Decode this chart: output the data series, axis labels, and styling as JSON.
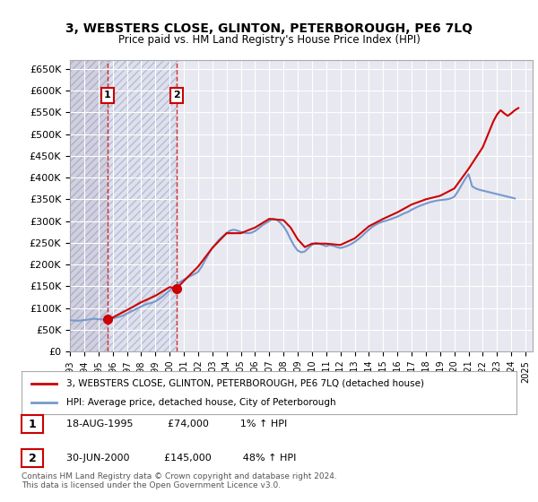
{
  "title": "3, WEBSTERS CLOSE, GLINTON, PETERBOROUGH, PE6 7LQ",
  "subtitle": "Price paid vs. HM Land Registry's House Price Index (HPI)",
  "ylabel_ticks": [
    0,
    50000,
    100000,
    150000,
    200000,
    250000,
    300000,
    350000,
    400000,
    450000,
    500000,
    550000,
    600000,
    650000
  ],
  "ylim": [
    0,
    670000
  ],
  "xlim_start": 1993.0,
  "xlim_end": 2025.5,
  "background_color": "#ffffff",
  "plot_bg_color": "#e8e8f0",
  "hatch_color": "#c8c8d8",
  "grid_color": "#ffffff",
  "red_line_color": "#cc0000",
  "blue_line_color": "#7799cc",
  "transaction_marker_color": "#cc0000",
  "transactions": [
    {
      "num": 1,
      "date": "18-AUG-1995",
      "price": 74000,
      "year": 1995.63,
      "pct": "1%",
      "dir": "↑"
    },
    {
      "num": 2,
      "date": "30-JUN-2000",
      "price": 145000,
      "year": 2000.5,
      "pct": "48%",
      "dir": "↑"
    }
  ],
  "legend_line1": "3, WEBSTERS CLOSE, GLINTON, PETERBOROUGH, PE6 7LQ (detached house)",
  "legend_line2": "HPI: Average price, detached house, City of Peterborough",
  "footer": "Contains HM Land Registry data © Crown copyright and database right 2024.\nThis data is licensed under the Open Government Licence v3.0.",
  "hpi_data_x": [
    1993.0,
    1993.25,
    1993.5,
    1993.75,
    1994.0,
    1994.25,
    1994.5,
    1994.75,
    1995.0,
    1995.25,
    1995.5,
    1995.75,
    1996.0,
    1996.25,
    1996.5,
    1996.75,
    1997.0,
    1997.25,
    1997.5,
    1997.75,
    1998.0,
    1998.25,
    1998.5,
    1998.75,
    1999.0,
    1999.25,
    1999.5,
    1999.75,
    2000.0,
    2000.25,
    2000.5,
    2000.75,
    2001.0,
    2001.25,
    2001.5,
    2001.75,
    2002.0,
    2002.25,
    2002.5,
    2002.75,
    2003.0,
    2003.25,
    2003.5,
    2003.75,
    2004.0,
    2004.25,
    2004.5,
    2004.75,
    2005.0,
    2005.25,
    2005.5,
    2005.75,
    2006.0,
    2006.25,
    2006.5,
    2006.75,
    2007.0,
    2007.25,
    2007.5,
    2007.75,
    2008.0,
    2008.25,
    2008.5,
    2008.75,
    2009.0,
    2009.25,
    2009.5,
    2009.75,
    2010.0,
    2010.25,
    2010.5,
    2010.75,
    2011.0,
    2011.25,
    2011.5,
    2011.75,
    2012.0,
    2012.25,
    2012.5,
    2012.75,
    2013.0,
    2013.25,
    2013.5,
    2013.75,
    2014.0,
    2014.25,
    2014.5,
    2014.75,
    2015.0,
    2015.25,
    2015.5,
    2015.75,
    2016.0,
    2016.25,
    2016.5,
    2016.75,
    2017.0,
    2017.25,
    2017.5,
    2017.75,
    2018.0,
    2018.25,
    2018.5,
    2018.75,
    2019.0,
    2019.25,
    2019.5,
    2019.75,
    2020.0,
    2020.25,
    2020.5,
    2020.75,
    2021.0,
    2021.25,
    2021.5,
    2021.75,
    2022.0,
    2022.25,
    2022.5,
    2022.75,
    2023.0,
    2023.25,
    2023.5,
    2023.75,
    2024.0,
    2024.25
  ],
  "hpi_data_y": [
    72000,
    71000,
    70500,
    71000,
    72000,
    73000,
    74500,
    75000,
    74000,
    73500,
    73000,
    74000,
    76000,
    78000,
    80000,
    83000,
    87000,
    91000,
    95000,
    99000,
    103000,
    107000,
    110000,
    112000,
    115000,
    120000,
    126000,
    133000,
    140000,
    147000,
    154000,
    160000,
    165000,
    170000,
    174000,
    178000,
    183000,
    195000,
    210000,
    225000,
    238000,
    248000,
    258000,
    265000,
    272000,
    278000,
    280000,
    278000,
    275000,
    273000,
    272000,
    273000,
    277000,
    283000,
    290000,
    295000,
    300000,
    305000,
    303000,
    297000,
    288000,
    275000,
    258000,
    243000,
    232000,
    228000,
    230000,
    238000,
    245000,
    250000,
    248000,
    245000,
    242000,
    245000,
    243000,
    240000,
    238000,
    240000,
    243000,
    247000,
    252000,
    258000,
    265000,
    273000,
    280000,
    287000,
    292000,
    296000,
    299000,
    301000,
    304000,
    307000,
    310000,
    314000,
    318000,
    321000,
    326000,
    330000,
    334000,
    337000,
    340000,
    343000,
    345000,
    347000,
    348000,
    349000,
    350000,
    352000,
    356000,
    368000,
    382000,
    396000,
    408000,
    380000,
    375000,
    372000,
    370000,
    368000,
    366000,
    364000,
    362000,
    360000,
    358000,
    356000,
    354000,
    352000
  ],
  "price_data_x": [
    1993.0,
    1993.5,
    1994.0,
    1994.5,
    1995.0,
    1995.63,
    1996.0,
    1997.0,
    1998.0,
    1999.0,
    2000.0,
    2000.5,
    2001.0,
    2002.0,
    2003.0,
    2004.0,
    2005.0,
    2006.0,
    2007.0,
    2008.0,
    2008.5,
    2009.0,
    2009.5,
    2010.0,
    2011.0,
    2012.0,
    2013.0,
    2014.0,
    2015.0,
    2016.0,
    2017.0,
    2018.0,
    2019.0,
    2020.0,
    2021.0,
    2021.5,
    2022.0,
    2022.5,
    2022.75,
    2023.0,
    2023.25,
    2023.5,
    2023.75,
    2024.0,
    2024.25,
    2024.5
  ],
  "price_data_y": [
    null,
    null,
    null,
    null,
    null,
    74000,
    78000,
    95000,
    113000,
    128000,
    148000,
    145000,
    162000,
    195000,
    238000,
    272000,
    272000,
    285000,
    305000,
    302000,
    285000,
    258000,
    240000,
    248000,
    248000,
    245000,
    260000,
    288000,
    305000,
    320000,
    338000,
    350000,
    358000,
    375000,
    420000,
    445000,
    470000,
    510000,
    530000,
    545000,
    555000,
    548000,
    542000,
    548000,
    555000,
    560000
  ]
}
